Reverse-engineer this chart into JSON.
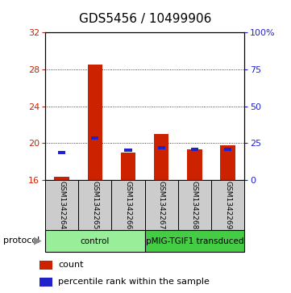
{
  "title": "GDS5456 / 10499906",
  "samples": [
    "GSM1342264",
    "GSM1342265",
    "GSM1342266",
    "GSM1342267",
    "GSM1342268",
    "GSM1342269"
  ],
  "count_values": [
    16.35,
    28.5,
    19.0,
    21.0,
    19.3,
    19.8
  ],
  "percentile_values": [
    18.8,
    20.4,
    19.1,
    19.35,
    19.2,
    19.2
  ],
  "count_base": 16,
  "ylim_left": [
    16,
    32
  ],
  "ylim_right": [
    0,
    100
  ],
  "yticks_left": [
    16,
    20,
    24,
    28,
    32
  ],
  "yticks_right": [
    0,
    25,
    50,
    75,
    100
  ],
  "ytick_labels_right": [
    "0",
    "25",
    "50",
    "75",
    "100%"
  ],
  "bar_color": "#cc2200",
  "percentile_color": "#2222cc",
  "bar_width": 0.45,
  "pct_bar_width": 0.22,
  "pct_bar_height": 0.35,
  "groups": [
    {
      "label": "control",
      "span": [
        0,
        3
      ],
      "color": "#99ee99"
    },
    {
      "label": "pMIG-TGIF1 transduced",
      "span": [
        3,
        6
      ],
      "color": "#44cc44"
    }
  ],
  "protocol_label": "protocol",
  "legend_count": "count",
  "legend_percentile": "percentile rank within the sample",
  "title_fontsize": 11,
  "axis_color_left": "#cc2200",
  "axis_color_right": "#2222cc",
  "background_color": "#ffffff",
  "plot_bg": "#ffffff",
  "gridcolor": "#111111",
  "label_bg": "#cccccc"
}
